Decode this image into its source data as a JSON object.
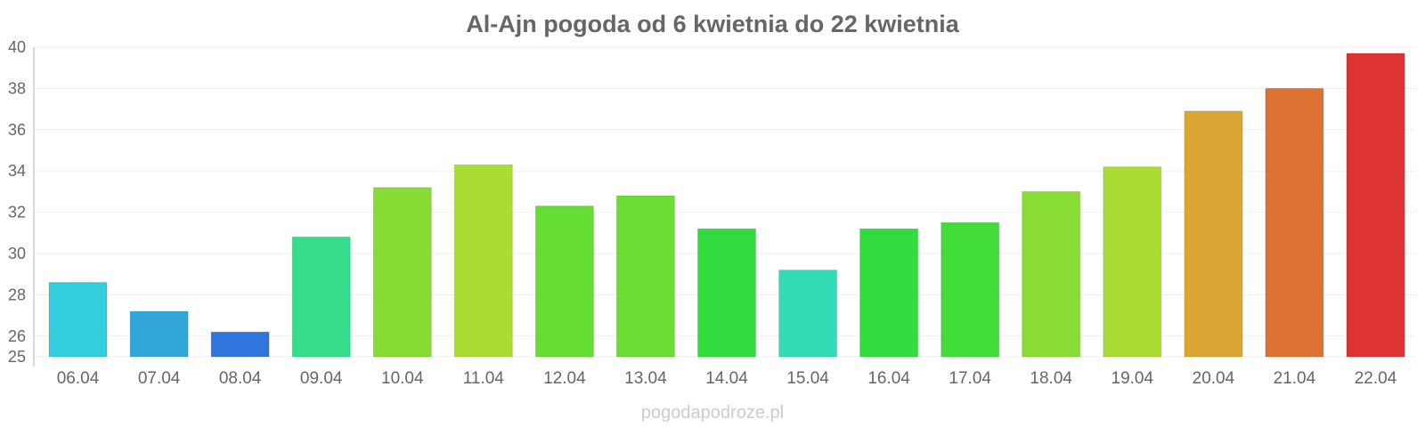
{
  "chart_data": {
    "type": "bar",
    "title": "Al-Ajn pogoda od 6 kwietnia do 22 kwietnia",
    "xlabel": "",
    "ylabel": "",
    "ylim": [
      25,
      40
    ],
    "yticks": [
      25,
      26,
      28,
      30,
      32,
      34,
      36,
      38,
      40
    ],
    "grid": true,
    "legend": "none",
    "categories": [
      "06.04",
      "07.04",
      "08.04",
      "09.04",
      "10.04",
      "11.04",
      "12.04",
      "13.04",
      "14.04",
      "15.04",
      "16.04",
      "17.04",
      "18.04",
      "19.04",
      "20.04",
      "21.04",
      "22.04"
    ],
    "values": [
      28.6,
      27.2,
      26.2,
      30.8,
      33.2,
      34.3,
      32.3,
      32.8,
      31.2,
      29.2,
      31.2,
      31.5,
      33.0,
      34.2,
      36.9,
      38.0,
      39.7
    ],
    "colors": [
      "#33cedd",
      "#33a6d9",
      "#3074dd",
      "#35dc8a",
      "#86dc32",
      "#aadd33",
      "#66dd33",
      "#6bdd33",
      "#33dc3e",
      "#34dcb5",
      "#33dc3e",
      "#42dc39",
      "#88dc33",
      "#aadd33",
      "#dba633",
      "#dd7033",
      "#dd3333"
    ]
  },
  "watermark": "pogodapodroze.pl"
}
